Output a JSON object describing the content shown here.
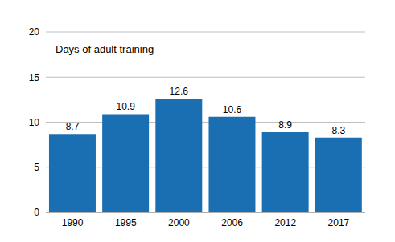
{
  "chart_data": {
    "type": "bar",
    "title": "Days of adult training",
    "categories": [
      "1990",
      "1995",
      "2000",
      "2006",
      "2012",
      "2017"
    ],
    "values": [
      8.7,
      10.9,
      12.6,
      10.6,
      8.9,
      8.3
    ],
    "color": "#1a6fb3",
    "ylim": [
      0,
      20
    ],
    "yticks": [
      0,
      5,
      10,
      15,
      20
    ],
    "grid": true,
    "data_labels": true
  }
}
